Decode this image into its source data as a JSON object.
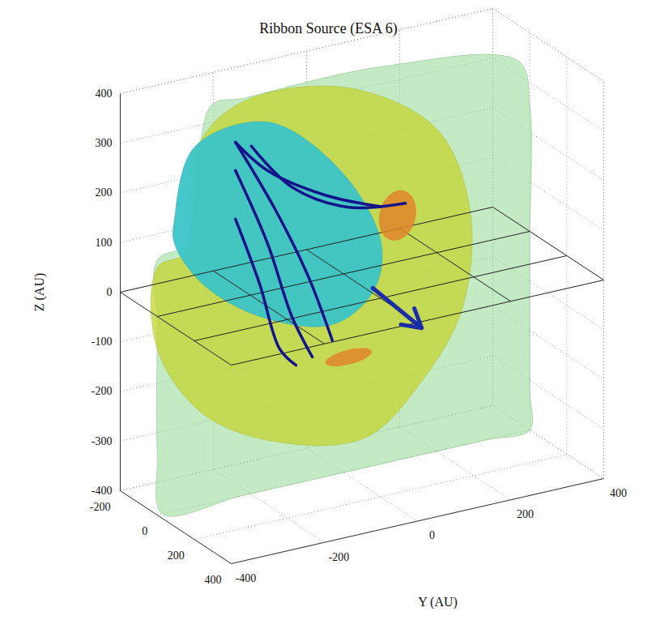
{
  "chart_data": {
    "type": "surface3d",
    "title": "Ribbon Source (ESA 6)",
    "ylabel": "Y (AU)",
    "zlabel": "Z (AU)",
    "xlim": [
      -200,
      400
    ],
    "xticks": [
      -200,
      0,
      200,
      400
    ],
    "ylim": [
      -400,
      400
    ],
    "yticks": [
      -400,
      -200,
      0,
      200,
      400
    ],
    "zlim": [
      -400,
      400
    ],
    "zticks": [
      -400,
      -300,
      -200,
      -100,
      0,
      100,
      200,
      300,
      400
    ],
    "grid": true,
    "plane_z": 0,
    "section_x": 0,
    "surfaces": [
      {
        "color": "#93d993",
        "outline": [
          [
            -284,
            400
          ],
          [
            -215,
            400
          ],
          [
            81,
            400
          ],
          [
            376,
            348
          ],
          [
            400,
            253
          ],
          [
            400,
            -25
          ],
          [
            400,
            -318
          ],
          [
            400,
            -400
          ],
          [
            307,
            -400
          ],
          [
            28,
            -400
          ],
          [
            -215,
            -400
          ],
          [
            -389,
            -400
          ],
          [
            -400,
            -278
          ],
          [
            -400,
            -16
          ],
          [
            -400,
            114
          ],
          [
            -337,
            134
          ]
        ]
      },
      {
        "color": "#c4d63a",
        "outline": [
          [
            -267,
            372
          ],
          [
            -163,
            400
          ],
          [
            28,
            366
          ],
          [
            202,
            247
          ],
          [
            272,
            69
          ],
          [
            255,
            -124
          ],
          [
            168,
            -252
          ],
          [
            46,
            -340
          ],
          [
            -145,
            -307
          ],
          [
            -302,
            -217
          ],
          [
            -400,
            -65
          ],
          [
            -400,
            98
          ],
          [
            -337,
            117
          ],
          [
            -328,
            294
          ]
        ]
      },
      {
        "color": "#3cc4c8",
        "outline": [
          [
            -363,
            188
          ],
          [
            -319,
            325
          ],
          [
            -163,
            341
          ],
          [
            -6,
            209
          ],
          [
            81,
            44
          ],
          [
            63,
            -50
          ],
          [
            -24,
            -97
          ],
          [
            -180,
            -47
          ],
          [
            -302,
            44
          ],
          [
            -363,
            139
          ]
        ]
      }
    ],
    "sources": [
      {
        "color": "#e0852a",
        "center": [
          116,
          93
        ],
        "radii": [
          40,
          50
        ]
      },
      {
        "color": "#e0852a",
        "center": [
          11,
          -170
        ],
        "radii": [
          50,
          15
        ]
      }
    ],
    "field_lines": {
      "color": "#14148a",
      "lines": [
        [
          [
            -232,
            315
          ],
          [
            -145,
            158
          ],
          [
            -76,
            12
          ],
          [
            -24,
            -129
          ]
        ],
        [
          [
            -232,
            258
          ],
          [
            -163,
            96
          ],
          [
            -111,
            -62
          ],
          [
            -67,
            -153
          ]
        ],
        [
          [
            -232,
            160
          ],
          [
            -180,
            18
          ],
          [
            -137,
            -122
          ],
          [
            -102,
            -162
          ]
        ],
        [
          [
            -232,
            315
          ],
          [
            -163,
            243
          ],
          [
            -41,
            168
          ],
          [
            81,
            118
          ]
        ],
        [
          [
            -198,
            300
          ],
          [
            -111,
            199
          ],
          [
            11,
            132
          ],
          [
            133,
            114
          ]
        ]
      ]
    },
    "arrow": {
      "color": "#1a2ca8",
      "from": [
        63,
        -42
      ],
      "to": [
        168,
        -145
      ]
    }
  }
}
